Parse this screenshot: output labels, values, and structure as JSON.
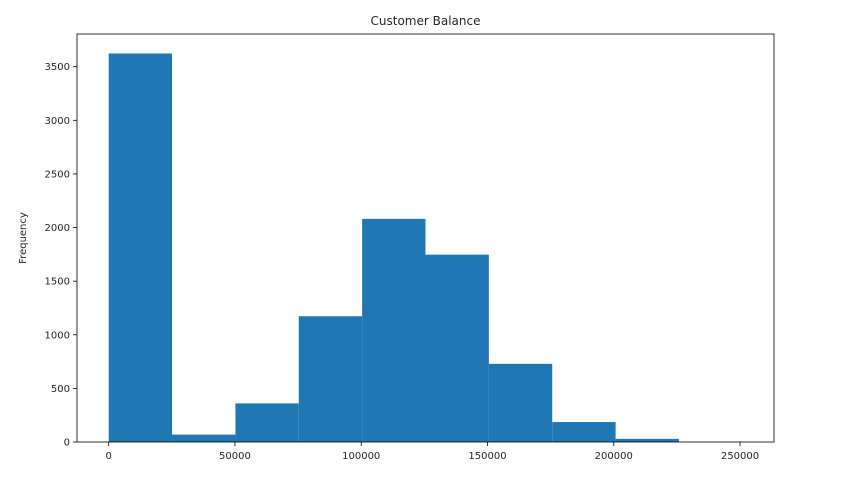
{
  "chart_data": {
    "type": "bar",
    "title": "Customer Balance",
    "xlabel": "",
    "ylabel": "Frequency",
    "bin_edges": [
      0,
      25089.8,
      50179.6,
      75269.4,
      100359.2,
      125449.0,
      150538.8,
      175628.6,
      200718.4,
      225808.2,
      250898.0
    ],
    "values": [
      3623,
      69,
      360,
      1173,
      2081,
      1747,
      729,
      186,
      29,
      2
    ],
    "xlim": [
      -12545,
      263443
    ],
    "ylim": [
      0,
      3805
    ],
    "xticks": [
      0,
      50000,
      100000,
      150000,
      200000,
      250000
    ],
    "xtick_labels": [
      "0",
      "50000",
      "100000",
      "150000",
      "200000",
      "250000"
    ],
    "yticks": [
      0,
      500,
      1000,
      1500,
      2000,
      2500,
      3000,
      3500
    ],
    "ytick_labels": [
      "0",
      "500",
      "1000",
      "1500",
      "2000",
      "2500",
      "3000",
      "3500"
    ],
    "bar_color": "#1f77b4",
    "grid": false,
    "legend": false
  }
}
